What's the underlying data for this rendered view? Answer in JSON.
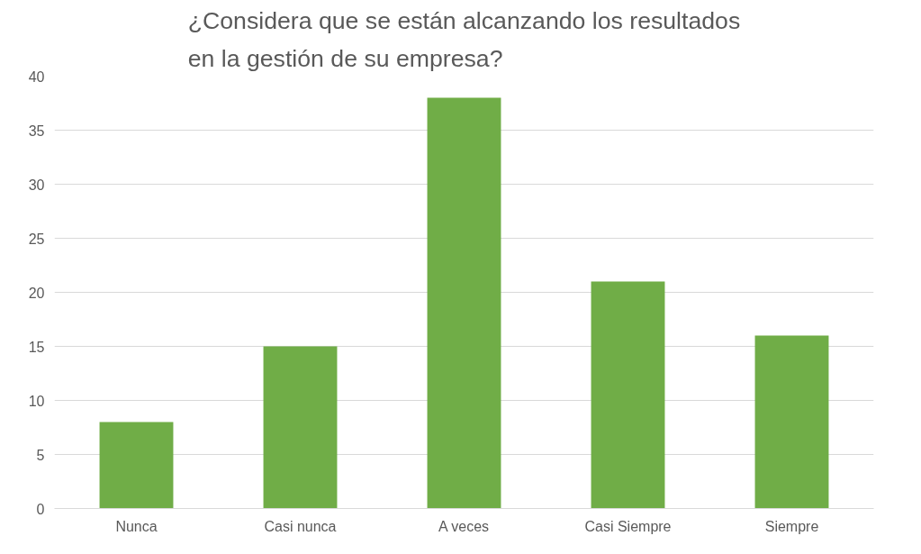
{
  "chart_data": {
    "type": "bar",
    "title": "¿Considera que se están alcanzando los resultados en la gestión de su empresa?",
    "categories": [
      "Nunca",
      "Casi nunca",
      "A veces",
      "Casi Siempre",
      "Siempre"
    ],
    "values": [
      8,
      15,
      38,
      21,
      16
    ],
    "color": "#70ad47",
    "ylim": [
      0,
      40
    ],
    "yticks": [
      0,
      5,
      10,
      15,
      20,
      25,
      30,
      35,
      40
    ],
    "grid": "y"
  }
}
